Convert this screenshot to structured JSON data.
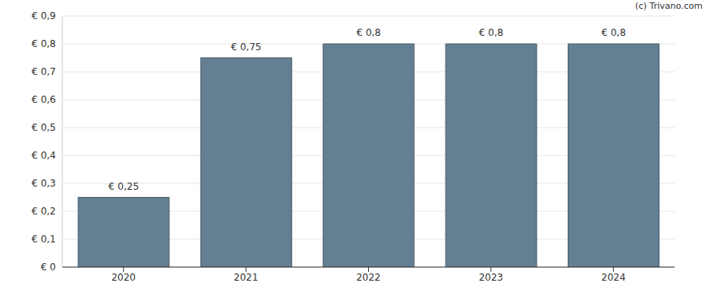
{
  "chart_data": {
    "type": "bar",
    "annotations": [
      "(c) Trivano.com"
    ],
    "categories": [
      "2020",
      "2021",
      "2022",
      "2023",
      "2024"
    ],
    "values": [
      0.25,
      0.75,
      0.8,
      0.8,
      0.8
    ],
    "value_labels": [
      "€ 0,25",
      "€ 0,75",
      "€ 0,8",
      "€ 0,8",
      "€ 0,8"
    ],
    "data_labels": true,
    "color": "#647f91",
    "ylim": [
      0,
      0.9
    ],
    "yticks": [
      {
        "value": 0,
        "label": "€ 0"
      },
      {
        "value": 0.1,
        "label": "€ 0,1"
      },
      {
        "value": 0.2,
        "label": "€ 0,2"
      },
      {
        "value": 0.3,
        "label": "€ 0,3"
      },
      {
        "value": 0.4,
        "label": "€ 0,4"
      },
      {
        "value": 0.5,
        "label": "€ 0,5"
      },
      {
        "value": 0.6,
        "label": "€ 0,6"
      },
      {
        "value": 0.7,
        "label": "€ 0,7"
      },
      {
        "value": 0.8,
        "label": "€ 0,8"
      },
      {
        "value": 0.9,
        "label": "€ 0,9"
      }
    ],
    "grid": true
  }
}
